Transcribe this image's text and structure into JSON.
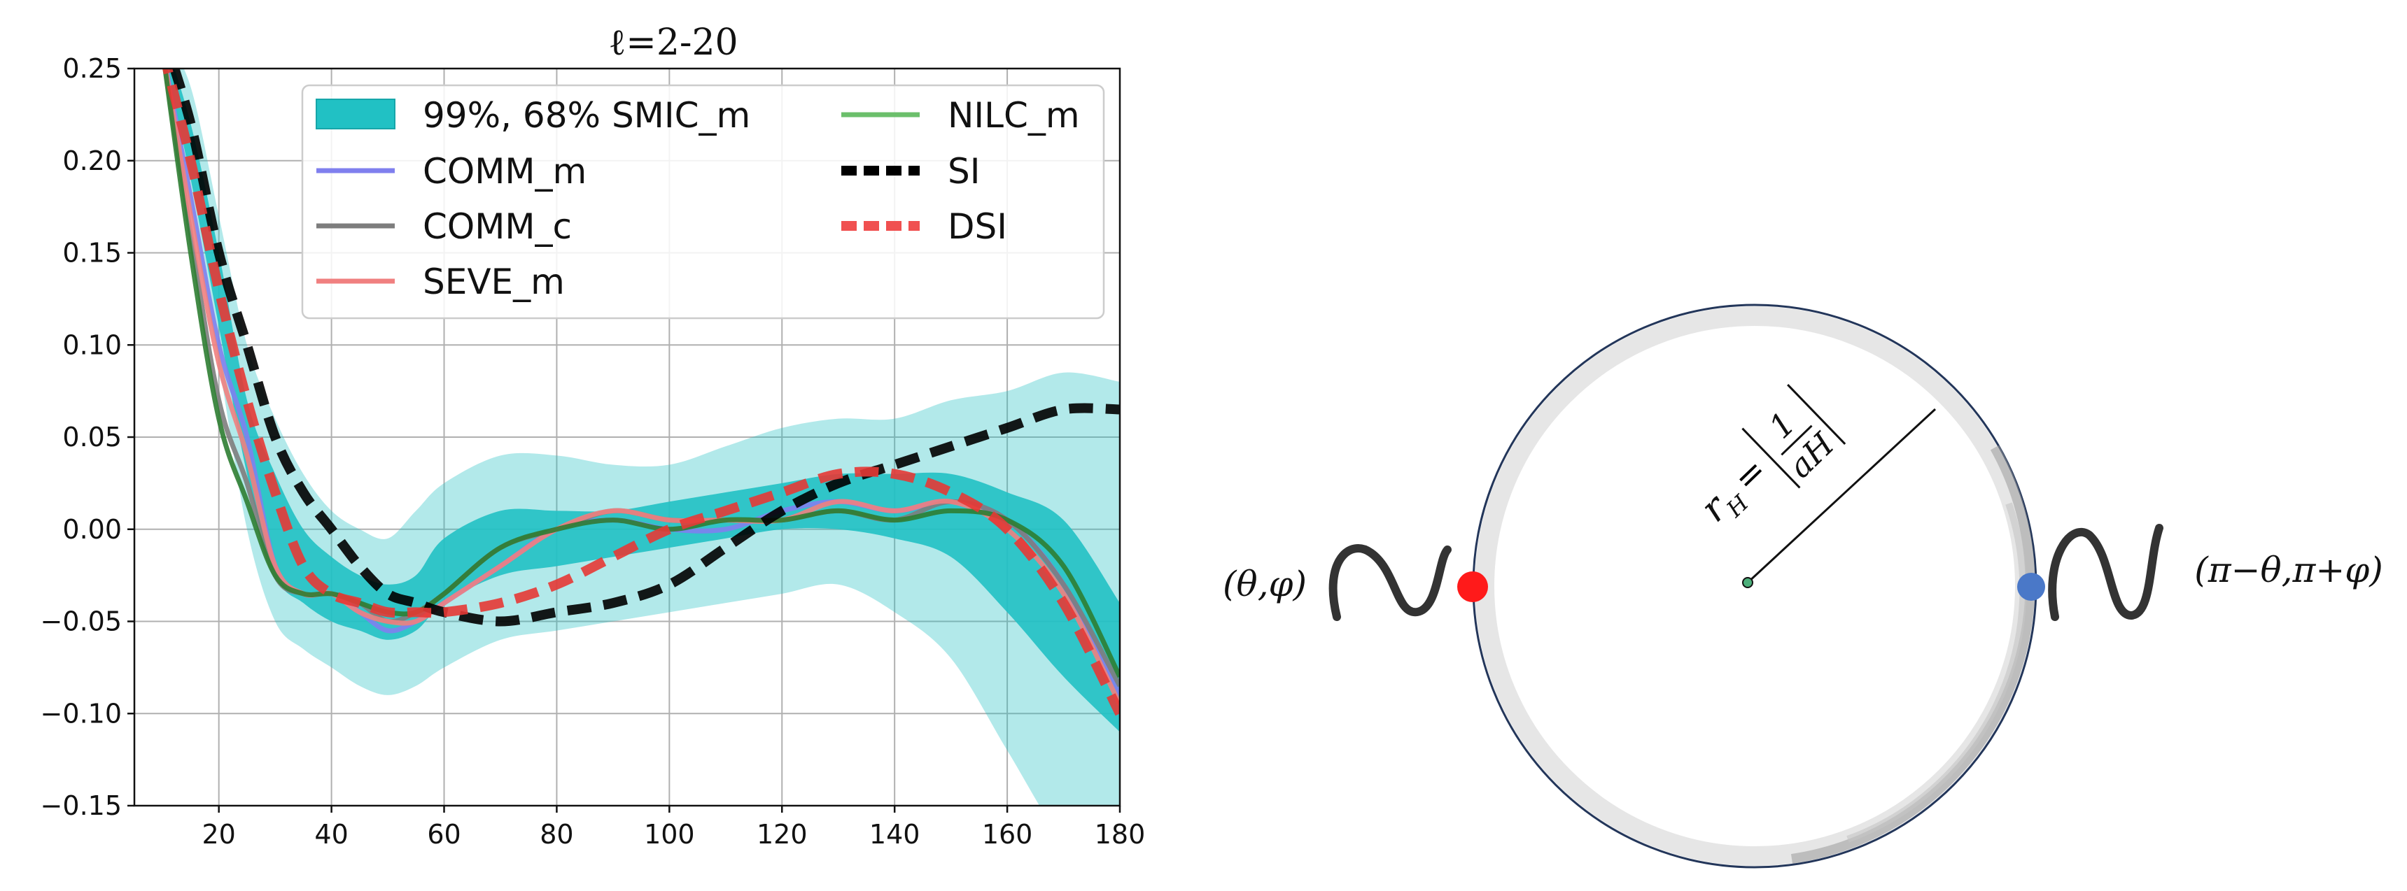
{
  "chart_data": {
    "type": "line",
    "title": "ℓ=2-20",
    "xlabel": "",
    "ylabel": "",
    "xlim": [
      5,
      180
    ],
    "ylim": [
      -0.15,
      0.25
    ],
    "grid": true,
    "legend_placement": "top-right",
    "x_ticks": [
      20,
      40,
      60,
      80,
      100,
      120,
      140,
      160,
      180
    ],
    "y_ticks": [
      -0.15,
      -0.1,
      -0.05,
      0.0,
      0.05,
      0.1,
      0.15,
      0.2,
      0.25
    ],
    "x_tick_labels": [
      "20",
      "40",
      "60",
      "80",
      "100",
      "120",
      "140",
      "160",
      "180"
    ],
    "y_tick_labels": [
      "−0.15",
      "−0.10",
      "−0.05",
      "0.00",
      "0.05",
      "0.10",
      "0.15",
      "0.20",
      "0.25"
    ],
    "x": [
      10,
      15,
      20,
      25,
      30,
      35,
      40,
      45,
      50,
      55,
      60,
      70,
      80,
      90,
      100,
      110,
      120,
      130,
      140,
      150,
      160,
      170,
      180
    ],
    "bands": [
      {
        "name": "99%, 68% SMIC_m",
        "color": "#21c1c4",
        "outer_opacity": 0.35,
        "inner_opacity": 0.9,
        "lower99": [
          0.26,
          0.18,
          0.09,
          0.0,
          -0.05,
          -0.065,
          -0.075,
          -0.085,
          -0.09,
          -0.085,
          -0.075,
          -0.06,
          -0.055,
          -0.05,
          -0.045,
          -0.04,
          -0.035,
          -0.03,
          -0.045,
          -0.07,
          -0.12,
          -0.17,
          -0.2
        ],
        "upper99": [
          0.27,
          0.24,
          0.17,
          0.1,
          0.06,
          0.03,
          0.01,
          0.0,
          -0.005,
          0.01,
          0.025,
          0.04,
          0.04,
          0.035,
          0.035,
          0.045,
          0.055,
          0.06,
          0.06,
          0.07,
          0.075,
          0.085,
          0.08
        ],
        "lower68": [
          0.26,
          0.19,
          0.11,
          0.03,
          -0.025,
          -0.04,
          -0.05,
          -0.055,
          -0.06,
          -0.055,
          -0.04,
          -0.025,
          -0.02,
          -0.015,
          -0.01,
          -0.005,
          0.0,
          0.0,
          -0.005,
          -0.015,
          -0.045,
          -0.08,
          -0.11
        ],
        "upper68": [
          0.27,
          0.22,
          0.15,
          0.07,
          0.03,
          0.0,
          -0.015,
          -0.025,
          -0.03,
          -0.025,
          -0.005,
          0.01,
          0.01,
          0.01,
          0.015,
          0.02,
          0.025,
          0.03,
          0.03,
          0.03,
          0.02,
          0.005,
          -0.04
        ]
      }
    ],
    "series": [
      {
        "name": "COMM_m",
        "color": "#7f7fee",
        "width": 7,
        "dash": "",
        "values": [
          0.26,
          0.18,
          0.1,
          0.05,
          -0.02,
          -0.035,
          -0.035,
          -0.045,
          -0.055,
          -0.05,
          -0.04,
          -0.02,
          0.0,
          0.005,
          0.0,
          0.0,
          0.01,
          0.015,
          0.01,
          0.015,
          0.005,
          -0.03,
          -0.09
        ]
      },
      {
        "name": "COMM_c",
        "color": "#7d7d7d",
        "width": 7,
        "dash": "",
        "values": [
          0.26,
          0.16,
          0.07,
          0.025,
          -0.025,
          -0.035,
          -0.035,
          -0.04,
          -0.05,
          -0.045,
          -0.035,
          -0.01,
          0.0,
          0.01,
          0.005,
          0.005,
          0.005,
          0.01,
          0.005,
          0.015,
          0.005,
          -0.03,
          -0.085
        ]
      },
      {
        "name": "SEVE_m",
        "color": "#f08080",
        "width": 7,
        "dash": "",
        "values": [
          0.26,
          0.17,
          0.09,
          0.04,
          -0.02,
          -0.035,
          -0.035,
          -0.045,
          -0.05,
          -0.05,
          -0.04,
          -0.02,
          0.0,
          0.01,
          0.005,
          0.005,
          0.005,
          0.015,
          0.01,
          0.015,
          0.0,
          -0.035,
          -0.095
        ]
      },
      {
        "name": "NILC_m",
        "color": "#2e7d32",
        "width": 7,
        "dash": "",
        "values": [
          0.26,
          0.15,
          0.06,
          0.015,
          -0.025,
          -0.035,
          -0.035,
          -0.04,
          -0.045,
          -0.045,
          -0.035,
          -0.01,
          0.0,
          0.005,
          0.0,
          0.005,
          0.005,
          0.01,
          0.005,
          0.01,
          0.005,
          -0.02,
          -0.08
        ]
      },
      {
        "name": "SI",
        "color": "#000000",
        "width": 14,
        "dash": "34,18",
        "values": [
          0.27,
          0.22,
          0.15,
          0.1,
          0.05,
          0.02,
          0.0,
          -0.02,
          -0.035,
          -0.04,
          -0.045,
          -0.05,
          -0.045,
          -0.04,
          -0.03,
          -0.01,
          0.01,
          0.025,
          0.035,
          0.045,
          0.055,
          0.065,
          0.065
        ]
      },
      {
        "name": "DSI",
        "color": "#e53935",
        "width": 14,
        "dash": "34,18",
        "values": [
          0.26,
          0.2,
          0.13,
          0.07,
          0.02,
          -0.02,
          -0.035,
          -0.04,
          -0.045,
          -0.045,
          -0.045,
          -0.04,
          -0.03,
          -0.015,
          0.0,
          0.01,
          0.02,
          0.03,
          0.03,
          0.02,
          0.0,
          -0.04,
          -0.1
        ]
      }
    ]
  },
  "legend": {
    "entries": [
      {
        "label": "99%, 68% SMIC_m",
        "kind": "patch",
        "color": "#21c1c4"
      },
      {
        "label": "COMM_m",
        "kind": "line",
        "color": "#7f7fee",
        "dash": ""
      },
      {
        "label": "COMM_c",
        "kind": "line",
        "color": "#7d7d7d",
        "dash": ""
      },
      {
        "label": "SEVE_m",
        "kind": "line",
        "color": "#f08080",
        "dash": ""
      },
      {
        "label": "NILC_m",
        "kind": "line",
        "color": "#6bbf6b",
        "dash": ""
      },
      {
        "label": "SI",
        "kind": "line",
        "color": "#000000",
        "dash": "22,10"
      },
      {
        "label": "DSI",
        "kind": "line",
        "color": "#f05050",
        "dash": "22,10"
      }
    ]
  },
  "diagram": {
    "radius_label": "r_H = |1/(aH)|",
    "radius_lhs": "r",
    "radius_sub": "H",
    "frac_num": "1",
    "frac_den": "aH",
    "left_point_label": "(θ,φ)",
    "right_point_label": "(π−θ,π+φ)",
    "colors": {
      "left_point": "#ff1a1a",
      "right_point": "#4a78c8",
      "circle_outline": "#23365a",
      "wave_stroke": "#333333"
    }
  }
}
